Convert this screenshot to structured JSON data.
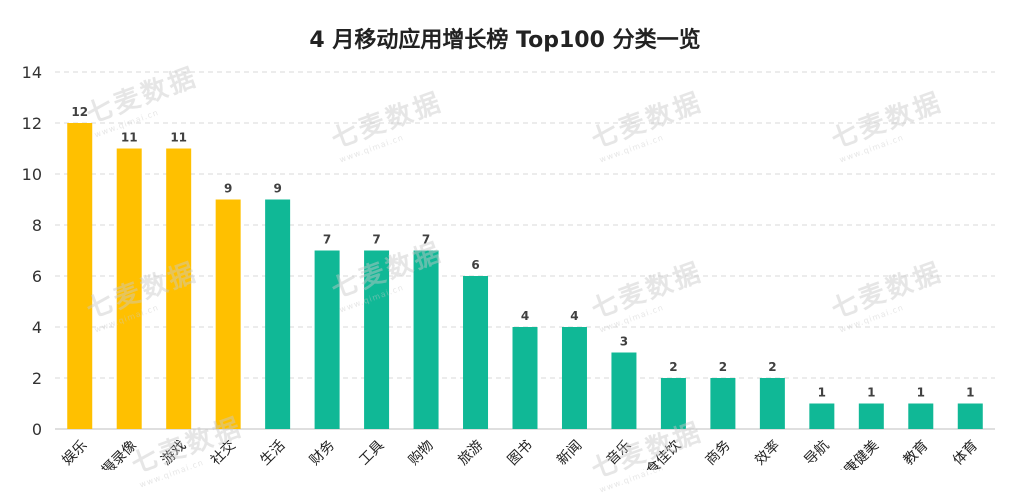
{
  "chart_data": {
    "type": "bar",
    "title": "4 月移动应用增长榜 Top100 分类一览",
    "categories": [
      "娱乐",
      "摄录像",
      "游戏",
      "社交",
      "生活",
      "财务",
      "工具",
      "购物",
      "旅游",
      "图书",
      "新闻",
      "音乐",
      "美食佳饮",
      "商务",
      "效率",
      "导航",
      "健康健美",
      "教育",
      "体育"
    ],
    "values": [
      12,
      11,
      11,
      9,
      9,
      7,
      7,
      7,
      6,
      4,
      4,
      3,
      2,
      2,
      2,
      1,
      1,
      1,
      1
    ],
    "bar_colors": [
      "#FFC000",
      "#FFC000",
      "#FFC000",
      "#FFC000",
      "#10B896",
      "#10B896",
      "#10B896",
      "#10B896",
      "#10B896",
      "#10B896",
      "#10B896",
      "#10B896",
      "#10B896",
      "#10B896",
      "#10B896",
      "#10B896",
      "#10B896",
      "#10B896",
      "#10B896"
    ],
    "ylim": [
      0,
      14
    ],
    "yticks": [
      0,
      2,
      4,
      6,
      8,
      10,
      12,
      14
    ],
    "grid": true,
    "xlabel": "",
    "ylabel": ""
  },
  "watermark": {
    "text": "七麦数据",
    "sub": "www.qimai.cn"
  }
}
